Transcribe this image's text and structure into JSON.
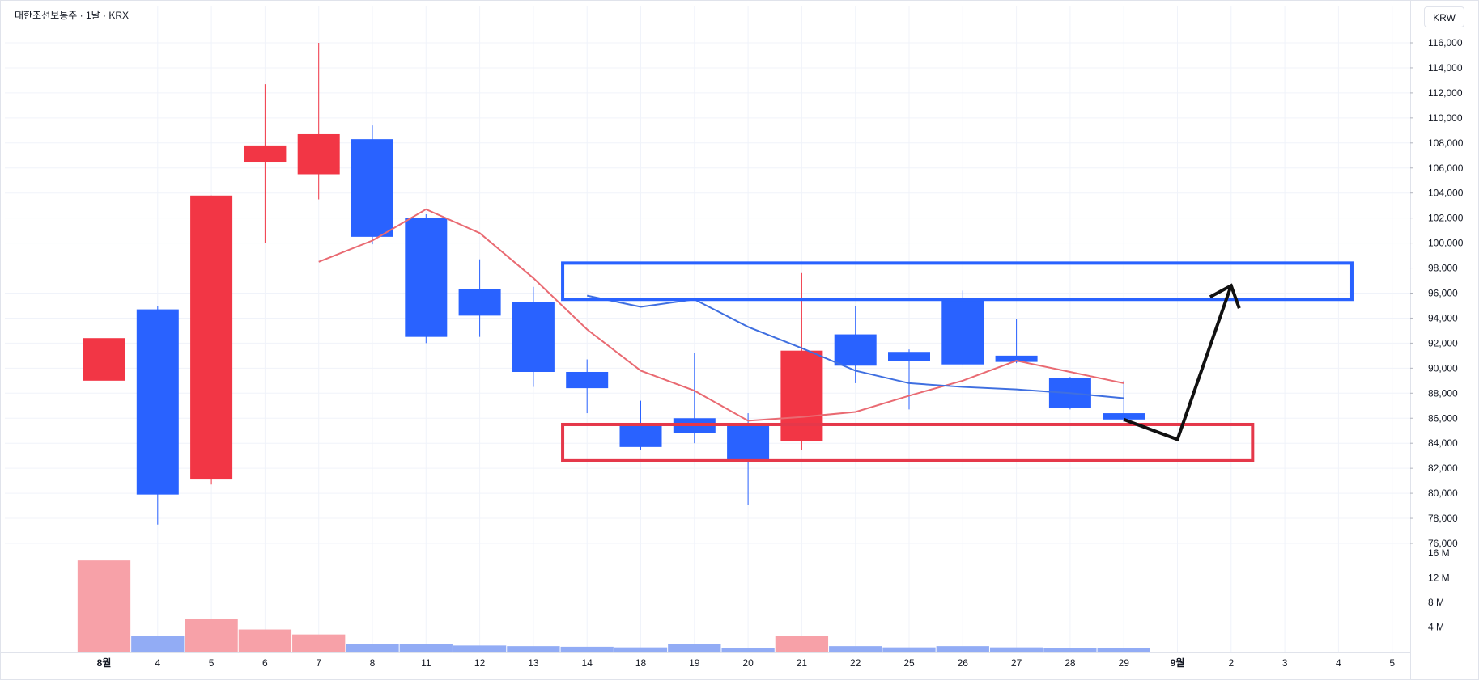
{
  "header": {
    "title": "대한조선보통주 · 1날 · KRX",
    "currency_label": "KRW"
  },
  "colors": {
    "up": "#f23645",
    "down": "#2962ff",
    "vol_up": "#f7a1a8",
    "vol_down": "#92acf5",
    "ma_red": "#e96a72",
    "ma_blue": "#3f6fe0",
    "box_blue": "#2962ff",
    "box_red": "#e5384a",
    "arrow": "#111111"
  },
  "chart_data": {
    "type": "candlestick",
    "y_range": [
      75500,
      117000
    ],
    "y_ticks": [
      "116,000",
      "114,000",
      "112,000",
      "110,000",
      "108,000",
      "106,000",
      "104,000",
      "102,000",
      "100,000",
      "98,000",
      "96,000",
      "94,000",
      "92,000",
      "90,000",
      "88,000",
      "86,000",
      "84,000",
      "82,000",
      "80,000",
      "78,000",
      "76,000"
    ],
    "y_tick_values": [
      116000,
      114000,
      112000,
      110000,
      108000,
      106000,
      104000,
      102000,
      100000,
      98000,
      96000,
      94000,
      92000,
      90000,
      88000,
      86000,
      84000,
      82000,
      80000,
      78000,
      76000
    ],
    "candles": [
      {
        "x": "8월",
        "open": 89000,
        "high": 99400,
        "low": 85500,
        "close": 92400
      },
      {
        "x": "4",
        "open": 94700,
        "high": 95000,
        "low": 77500,
        "close": 79900
      },
      {
        "x": "5",
        "open": 81100,
        "high": 103800,
        "low": 80700,
        "close": 103800
      },
      {
        "x": "6",
        "open": 106500,
        "high": 112700,
        "low": 100000,
        "close": 107800
      },
      {
        "x": "7",
        "open": 105500,
        "high": 116000,
        "low": 103500,
        "close": 108700
      },
      {
        "x": "8",
        "open": 108300,
        "high": 109400,
        "low": 99900,
        "close": 100500
      },
      {
        "x": "11",
        "open": 102000,
        "high": 102300,
        "low": 92000,
        "close": 92500
      },
      {
        "x": "12",
        "open": 96300,
        "high": 98700,
        "low": 92500,
        "close": 94200
      },
      {
        "x": "13",
        "open": 95300,
        "high": 96500,
        "low": 88500,
        "close": 89700
      },
      {
        "x": "14",
        "open": 89700,
        "high": 90700,
        "low": 86400,
        "close": 88400
      },
      {
        "x": "18",
        "open": 85500,
        "high": 87400,
        "low": 83500,
        "close": 83700
      },
      {
        "x": "19",
        "open": 86000,
        "high": 91200,
        "low": 84000,
        "close": 84800
      },
      {
        "x": "20",
        "open": 85600,
        "high": 86400,
        "low": 79100,
        "close": 82500
      },
      {
        "x": "21",
        "open": 84200,
        "high": 97600,
        "low": 83500,
        "close": 91400
      },
      {
        "x": "22",
        "open": 92700,
        "high": 95000,
        "low": 88800,
        "close": 90200
      },
      {
        "x": "25",
        "open": 91300,
        "high": 91500,
        "low": 86700,
        "close": 90600
      },
      {
        "x": "26",
        "open": 95600,
        "high": 96200,
        "low": 90300,
        "close": 90300
      },
      {
        "x": "27",
        "open": 91000,
        "high": 93900,
        "low": 90400,
        "close": 90500
      },
      {
        "x": "28",
        "open": 89200,
        "high": 89300,
        "low": 86700,
        "close": 86800
      },
      {
        "x": "29",
        "open": 86400,
        "high": 89000,
        "low": 85700,
        "close": 85900
      }
    ],
    "ma_red": [
      {
        "x": "7",
        "y": 98500
      },
      {
        "x": "8",
        "y": 100200
      },
      {
        "x": "11",
        "y": 102700
      },
      {
        "x": "12",
        "y": 100800
      },
      {
        "x": "13",
        "y": 97200
      },
      {
        "x": "14",
        "y": 93100
      },
      {
        "x": "18",
        "y": 89800
      },
      {
        "x": "19",
        "y": 88200
      },
      {
        "x": "20",
        "y": 85800
      },
      {
        "x": "21",
        "y": 86100
      },
      {
        "x": "22",
        "y": 86500
      },
      {
        "x": "25",
        "y": 87800
      },
      {
        "x": "26",
        "y": 89000
      },
      {
        "x": "27",
        "y": 90600
      },
      {
        "x": "28",
        "y": 89700
      },
      {
        "x": "29",
        "y": 88800
      }
    ],
    "ma_blue": [
      {
        "x": "14",
        "y": 95800
      },
      {
        "x": "18",
        "y": 94900
      },
      {
        "x": "19",
        "y": 95500
      },
      {
        "x": "20",
        "y": 93300
      },
      {
        "x": "21",
        "y": 91600
      },
      {
        "x": "22",
        "y": 89800
      },
      {
        "x": "25",
        "y": 88800
      },
      {
        "x": "26",
        "y": 88500
      },
      {
        "x": "27",
        "y": 88300
      },
      {
        "x": "28",
        "y": 88000
      },
      {
        "x": "29",
        "y": 87600
      }
    ],
    "volume_range": [
      0,
      16000000
    ],
    "volume_ticks": [
      "16 M",
      "12 M",
      "8 M",
      "4 M"
    ],
    "volume_tick_values": [
      16000000,
      12000000,
      8000000,
      4000000
    ],
    "volume": [
      14800000,
      2600000,
      5300000,
      3600000,
      2800000,
      1200000,
      1200000,
      1000000,
      900000,
      800000,
      700000,
      1300000,
      600000,
      2500000,
      900000,
      700000,
      900000,
      700000,
      600000,
      600000
    ],
    "x_labels": [
      "8월",
      "4",
      "5",
      "6",
      "7",
      "8",
      "11",
      "12",
      "13",
      "14",
      "18",
      "19",
      "20",
      "21",
      "22",
      "25",
      "26",
      "27",
      "28",
      "29",
      "9월",
      "2",
      "3",
      "4",
      "5"
    ],
    "x_label_bold": [
      "8월",
      "9월"
    ],
    "annotations": {
      "resistance_box": {
        "x_from": "14",
        "x_to_future_index": 23.25,
        "y_top": 98400,
        "y_bottom": 95500
      },
      "support_box": {
        "x_from": "14",
        "x_to_future_index": 21.4,
        "y_top": 85500,
        "y_bottom": 82600
      },
      "forecast_arrow": [
        {
          "index": 19,
          "y": 85900
        },
        {
          "index": 20,
          "y": 84300
        },
        {
          "index": 21,
          "y": 96600
        }
      ],
      "arrow_head": {
        "index": 21,
        "y": 96600
      }
    }
  }
}
